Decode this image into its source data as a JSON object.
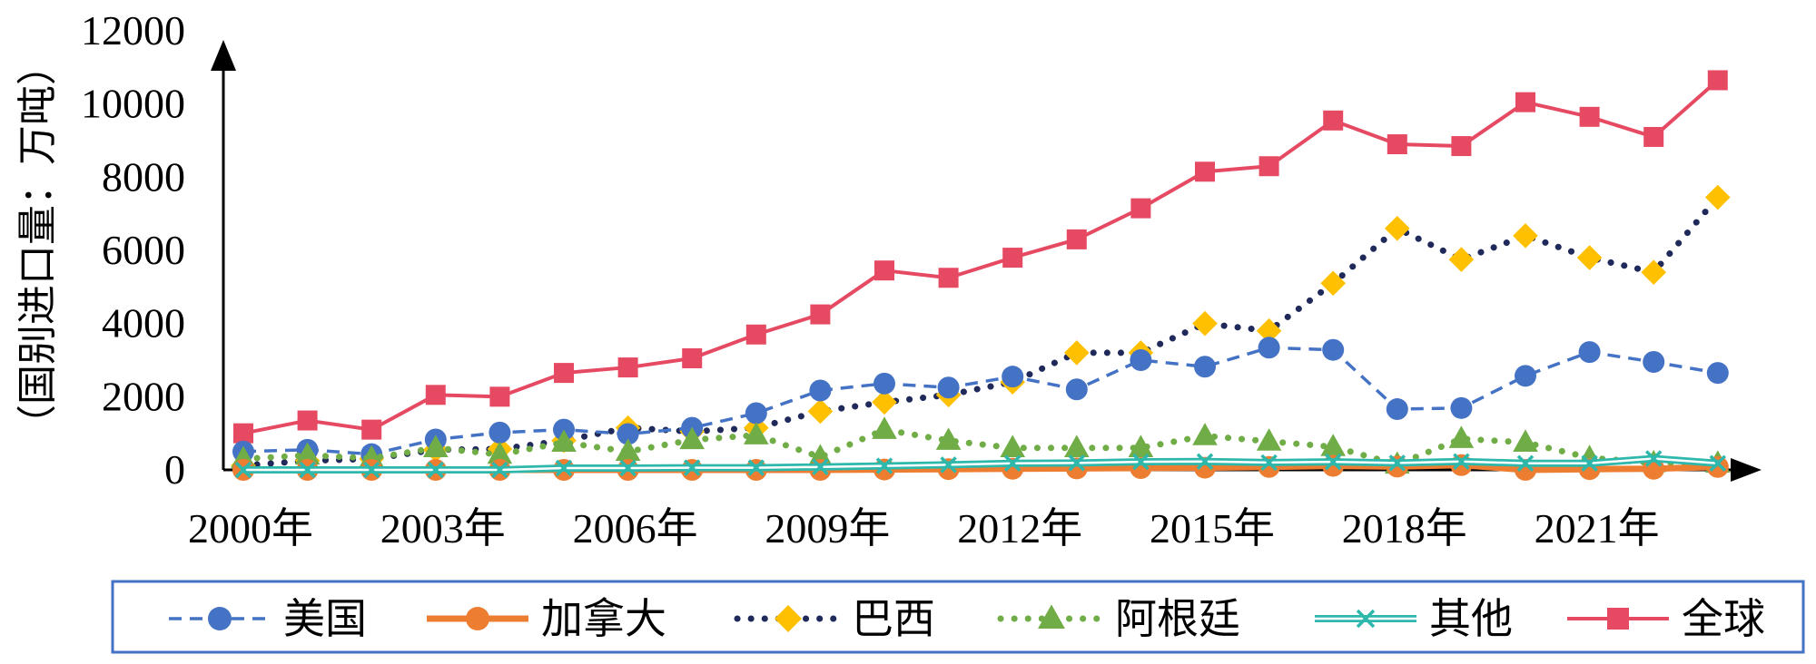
{
  "chart_data": {
    "type": "line",
    "title": "",
    "xlabel": "",
    "ylabel": "（国别进口量：万吨）",
    "ylim": [
      0,
      12000
    ],
    "yticks": [
      "0",
      "2000",
      "4000",
      "6000",
      "8000",
      "10000",
      "12000"
    ],
    "x": [
      2000,
      2001,
      2002,
      2003,
      2004,
      2005,
      2006,
      2007,
      2008,
      2009,
      2010,
      2011,
      2012,
      2013,
      2014,
      2015,
      2016,
      2017,
      2018,
      2019,
      2020,
      2021,
      2022,
      2023
    ],
    "xticks": [
      {
        "x": 2000,
        "label": "2000年"
      },
      {
        "x": 2003,
        "label": "2003年"
      },
      {
        "x": 2006,
        "label": "2006年"
      },
      {
        "x": 2009,
        "label": "2009年"
      },
      {
        "x": 2012,
        "label": "2012年"
      },
      {
        "x": 2015,
        "label": "2015年"
      },
      {
        "x": 2018,
        "label": "2018年"
      },
      {
        "x": 2021,
        "label": "2021年"
      }
    ],
    "legend_position": "bottom",
    "grid": false,
    "series": [
      {
        "name": "美国",
        "color": "#4472C4",
        "marker": "circle",
        "line": "dashed",
        "values": [
          500,
          550,
          430,
          830,
          1020,
          1100,
          980,
          1150,
          1550,
          2170,
          2360,
          2250,
          2550,
          2200,
          3000,
          2820,
          3340,
          3280,
          1660,
          1690,
          2570,
          3220,
          2950,
          2650
        ]
      },
      {
        "name": "加拿大",
        "color": "#ED7D31",
        "marker": "circle",
        "line": "solid-thick",
        "values": [
          0,
          0,
          0,
          0,
          0,
          0,
          0,
          0,
          0,
          0,
          10,
          20,
          30,
          40,
          50,
          60,
          80,
          110,
          90,
          130,
          0,
          20,
          30,
          80
        ]
      },
      {
        "name": "巴西",
        "color": "#1F2A5A",
        "marker_color": "#FFC000",
        "marker": "diamond",
        "line": "dotted",
        "values": [
          120,
          250,
          300,
          550,
          570,
          800,
          1150,
          1050,
          1150,
          1600,
          1850,
          2050,
          2400,
          3200,
          3200,
          4000,
          3800,
          5100,
          6600,
          5750,
          6400,
          5800,
          5400,
          7450
        ]
      },
      {
        "name": "阿根廷",
        "color": "#70AD47",
        "marker": "triangle",
        "line": "dotted",
        "values": [
          300,
          400,
          320,
          600,
          420,
          750,
          500,
          820,
          950,
          350,
          1100,
          800,
          600,
          600,
          600,
          930,
          780,
          630,
          150,
          850,
          750,
          330,
          190,
          180
        ]
      },
      {
        "name": "其他",
        "color": "#2EB8AC",
        "marker": "cross",
        "line": "double",
        "values": [
          0,
          0,
          0,
          0,
          0,
          50,
          50,
          60,
          60,
          80,
          110,
          140,
          180,
          190,
          220,
          230,
          200,
          220,
          190,
          230,
          180,
          180,
          310,
          180
        ]
      },
      {
        "name": "全球",
        "color": "#E64A63",
        "marker": "square",
        "line": "solid",
        "values": [
          1000,
          1350,
          1100,
          2050,
          2000,
          2650,
          2800,
          3050,
          3700,
          4250,
          5450,
          5250,
          5800,
          6300,
          7150,
          8150,
          8300,
          9550,
          8900,
          8850,
          10050,
          9650,
          9100,
          10650
        ]
      }
    ]
  }
}
